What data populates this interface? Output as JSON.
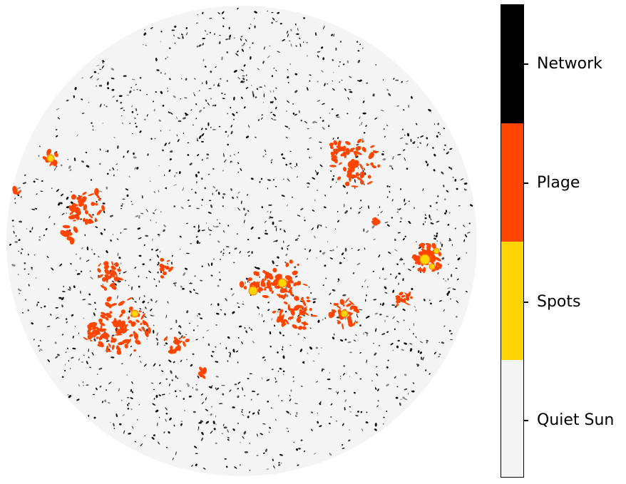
{
  "colors": {
    "quiet_sun": "#f4f4f4",
    "spots": "#ffd400",
    "plage": "#ff4500",
    "network": "#000000"
  },
  "colorbar": {
    "categories": [
      {
        "label": "Network",
        "color": "#000000"
      },
      {
        "label": "Plage",
        "color": "#ff4500"
      },
      {
        "label": "Spots",
        "color": "#ffd400"
      },
      {
        "label": "Quiet Sun",
        "color": "#f4f4f4"
      }
    ]
  }
}
